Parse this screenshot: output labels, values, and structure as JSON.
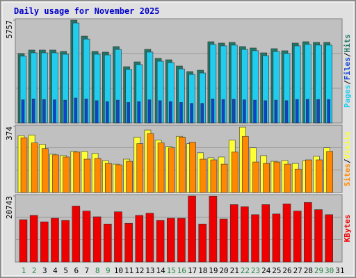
{
  "chart_data": [
    {
      "type": "bar",
      "title": "Daily usage for November 2025",
      "separator": "/",
      "ylim": [
        0,
        5757
      ],
      "yticks": [
        5757
      ],
      "series": [
        {
          "name": "Pages",
          "color": "#22ccee",
          "values": [
            3740,
            3930,
            3930,
            3930,
            3850,
            5600,
            4700,
            3850,
            3810,
            4120,
            3000,
            3270,
            3970,
            3460,
            3380,
            3030,
            2720,
            2800,
            4400,
            4320,
            4360,
            4120,
            4050,
            3770,
            4000,
            3890,
            4320,
            4400,
            4360,
            4360,
            null
          ]
        },
        {
          "name": "Files",
          "color": "#1144cc",
          "values": [
            1300,
            1350,
            1320,
            1300,
            1280,
            1400,
            1350,
            1250,
            1200,
            1280,
            1150,
            1200,
            1300,
            1250,
            1200,
            1150,
            1100,
            1100,
            1350,
            1320,
            1330,
            1300,
            1280,
            1250,
            1280,
            1250,
            1320,
            1330,
            1320,
            1320,
            null
          ]
        },
        {
          "name": "Hits",
          "color": "#227766",
          "values": [
            3890,
            4085,
            4085,
            4085,
            4007,
            5757,
            4862,
            4007,
            3968,
            4279,
            3151,
            3423,
            4123,
            3618,
            3540,
            3190,
            2879,
            2956,
            4551,
            4474,
            4512,
            4279,
            4201,
            3929,
            4162,
            4046,
            4474,
            4551,
            4512,
            4512,
            null
          ]
        }
      ]
    },
    {
      "type": "bar",
      "ylim": [
        0,
        374
      ],
      "yticks": [
        374
      ],
      "series": [
        {
          "name": "Sites",
          "color": "#ff8800",
          "values": [
            310,
            281,
            249,
            213,
            201,
            229,
            189,
            193,
            165,
            157,
            177,
            277,
            334,
            281,
            253,
            314,
            285,
            189,
            185,
            161,
            229,
            318,
            173,
            165,
            173,
            161,
            133,
            185,
            185,
            233,
            null
          ]
        },
        {
          "name": "Visits",
          "color": "#ffff33",
          "values": [
            322,
            326,
            273,
            217,
            209,
            233,
            233,
            221,
            181,
            161,
            189,
            314,
            354,
            297,
            261,
            318,
            277,
            225,
            197,
            201,
            297,
            370,
            253,
            209,
            177,
            181,
            165,
            181,
            205,
            253,
            null
          ]
        }
      ]
    },
    {
      "type": "bar",
      "ylim": [
        0,
        20743
      ],
      "yticks": [
        20743
      ],
      "categories": [
        "1",
        "2",
        "3",
        "4",
        "5",
        "6",
        "7",
        "8",
        "9",
        "10",
        "11",
        "12",
        "13",
        "14",
        "15",
        "16",
        "17",
        "18",
        "19",
        "20",
        "21",
        "22",
        "23",
        "24",
        "25",
        "26",
        "27",
        "28",
        "29",
        "30",
        "31"
      ],
      "category_colors": [
        "#228844",
        "#228844",
        "#000000",
        "#000000",
        "#000000",
        "#000000",
        "#000000",
        "#228844",
        "#228844",
        "#000000",
        "#000000",
        "#000000",
        "#000000",
        "#000000",
        "#228844",
        "#228844",
        "#000000",
        "#000000",
        "#000000",
        "#000000",
        "#000000",
        "#228844",
        "#228844",
        "#000000",
        "#000000",
        "#000000",
        "#000000",
        "#000000",
        "#228844",
        "#228844",
        "#000000"
      ],
      "series": [
        {
          "name": "KBytes",
          "color": "#ee0000",
          "values": [
            13305,
            14658,
            12628,
            13756,
            13079,
            17589,
            16010,
            14207,
            11952,
            15785,
            12177,
            14658,
            15334,
            13079,
            13756,
            13756,
            20743,
            11952,
            20700,
            13530,
            18040,
            17364,
            14883,
            18040,
            15109,
            18266,
            16010,
            18717,
            16461,
            14883,
            null
          ]
        }
      ]
    }
  ]
}
